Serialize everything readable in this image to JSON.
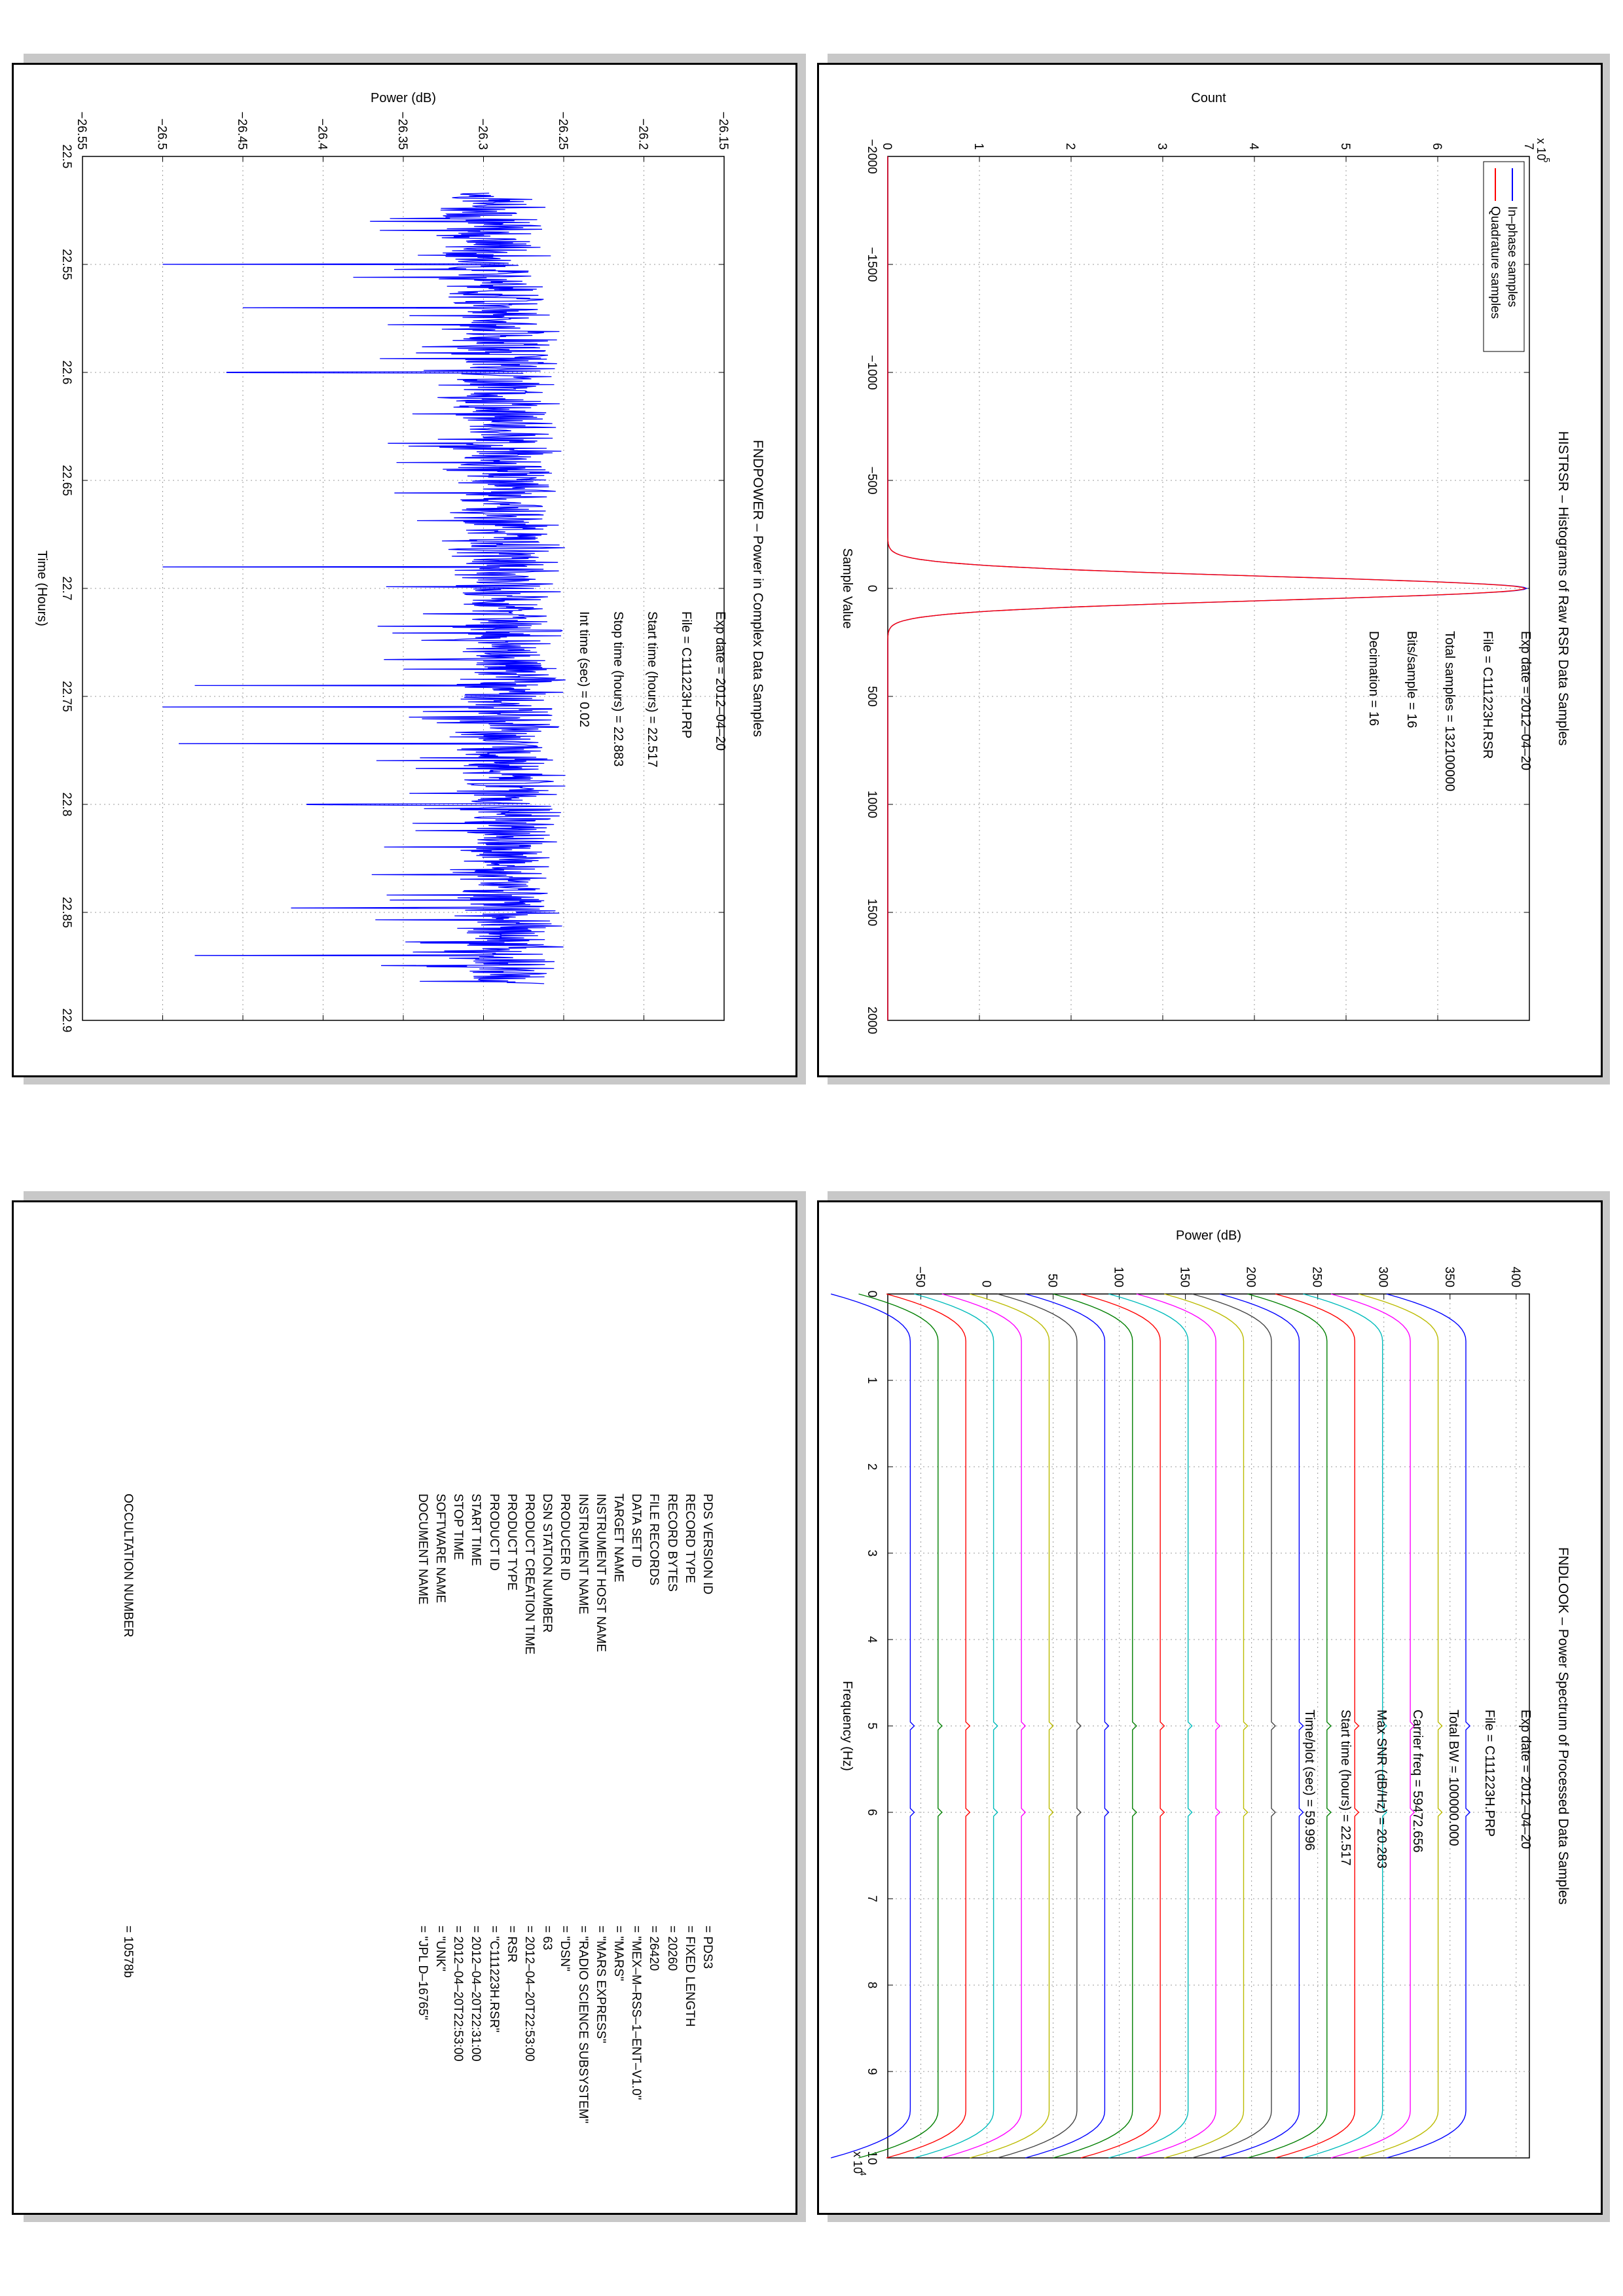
{
  "panels": {
    "histrsr": {
      "title": "HISTRSR – Histograms of Raw RSR Data Samples",
      "annotations": {
        "exp_date": "Exp date = 2012–04–20",
        "file": "File = C111223H.RSR",
        "total_samples": "Total samples =  132100000",
        "bits_sample": "Bits/sample    =         16",
        "decimation": "Decimation     =         16"
      }
    },
    "fndpower": {
      "title": "FNDPOWER – Power in Complex Data Samples",
      "annotations": {
        "exp_date": "Exp date = 2012–04–20",
        "file": "File = C111223H.PRP",
        "start_time": "Start time (hours) = 22.517",
        "stop_time": "Stop time (hours) = 22.883",
        "int_time": "Int time (sec) = 0.02"
      }
    },
    "fndlook": {
      "title": "FNDLOOK – Power Spectrum of Processed Data Samples",
      "annotations": {
        "exp_date": "Exp date = 2012–04–20",
        "file": "File = C111223H.PRP",
        "total_bw": "Total BW =    100000.000",
        "carrier_freq": "Carrier freq =   59472.656",
        "max_snr": "Max SNR (dB/Hz) =    20.283",
        "start_time": "Start time (hours) =   22.517",
        "time_plot": "Time/plot (sec) =   59.996"
      }
    },
    "labels_panel": {
      "rows": [
        {
          "key": "PDS VERSION ID",
          "value": "=  PDS3"
        },
        {
          "key": "RECORD TYPE",
          "value": "=  FIXED LENGTH"
        },
        {
          "key": "RECORD BYTES",
          "value": "=  20260"
        },
        {
          "key": "FILE RECORDS",
          "value": "=  26420"
        },
        {
          "key": "DATA SET ID",
          "value": "=  \"MEX–M–RSS–1–ENT–V1.0\""
        },
        {
          "key": "TARGET NAME",
          "value": "=  \"MARS\""
        },
        {
          "key": "INSTRUMENT HOST NAME",
          "value": "=  \"MARS EXPRESS\""
        },
        {
          "key": "INSTRUMENT NAME",
          "value": "=  \"RADIO SCIENCE SUBSYSTEM\""
        },
        {
          "key": "PRODUCER ID",
          "value": "=  \"DSN\""
        },
        {
          "key": "DSN STATION NUMBER",
          "value": "=  63"
        },
        {
          "key": "PRODUCT CREATION TIME",
          "value": "=  2012–04–20T22:53:00"
        },
        {
          "key": "PRODUCT TYPE",
          "value": "=  RSR"
        },
        {
          "key": "PRODUCT ID",
          "value": "=  \"C111223H.RSR\""
        },
        {
          "key": "START TIME",
          "value": "=  2012–04–20T22:31:00"
        },
        {
          "key": "STOP TIME",
          "value": "=  2012–04–20T22:53:00"
        },
        {
          "key": "SOFTWARE NAME",
          "value": "=  \"UNK\""
        },
        {
          "key": "DOCUMENT NAME",
          "value": "=  \"JPL D–16765\""
        },
        {
          "key": "OCCULTATION NUMBER",
          "value": "=  10578b"
        }
      ]
    }
  },
  "chart_data": [
    {
      "id": "histrsr",
      "type": "line",
      "title": "HISTRSR – Histograms of Raw RSR Data Samples",
      "xlabel": "Sample Value",
      "ylabel": "Count",
      "y_multiplier": "x 10^5",
      "y_exp_base": "x 10",
      "y_exp": "5",
      "xlim": [
        -2000,
        2000
      ],
      "ylim": [
        0,
        7
      ],
      "xticks": [
        "−2000",
        "−1500",
        "−1000",
        "−500",
        "0",
        "500",
        "1000",
        "1500",
        "2000"
      ],
      "yticks": [
        "0",
        "1",
        "2",
        "3",
        "4",
        "5",
        "6",
        "7"
      ],
      "grid": true,
      "legend_position": "top-left",
      "series": [
        {
          "name": "In–phase samples",
          "color": "#0000ff",
          "model": "gaussian",
          "peak": 6.97,
          "sigma": 55
        },
        {
          "name": "Quadrature samples",
          "color": "#ff0000",
          "model": "gaussian",
          "peak": 6.95,
          "sigma": 55
        }
      ]
    },
    {
      "id": "fndpower",
      "type": "line",
      "title": "FNDPOWER – Power in Complex Data Samples",
      "xlabel": "Time (Hours)",
      "ylabel": "Power (dB)",
      "xlim": [
        22.5,
        22.9
      ],
      "ylim": [
        -26.55,
        -26.15
      ],
      "xticks": [
        "22.5",
        "22.55",
        "22.6",
        "22.65",
        "22.7",
        "22.75",
        "22.8",
        "22.85",
        "22.9"
      ],
      "yticks": [
        "−26.55",
        "−26.5",
        "−26.45",
        "−26.4",
        "−26.35",
        "−26.3",
        "−26.25",
        "−26.2",
        "−26.15"
      ],
      "grid": true,
      "series": [
        {
          "color": "#0000ff",
          "x_range": [
            22.517,
            22.883
          ],
          "baseline": -26.285,
          "noise": 0.018,
          "spikes": [
            [
              22.55,
              -26.5
            ],
            [
              22.57,
              -26.45
            ],
            [
              22.6,
              -26.46
            ],
            [
              22.69,
              -26.5
            ],
            [
              22.745,
              -26.48
            ],
            [
              22.755,
              -26.5
            ],
            [
              22.772,
              -26.49
            ],
            [
              22.8,
              -26.41
            ],
            [
              22.848,
              -26.42
            ],
            [
              22.87,
              -26.48
            ]
          ]
        }
      ]
    },
    {
      "id": "fndlook",
      "type": "line",
      "title": "FNDLOOK – Power Spectrum of Processed Data Samples",
      "xlabel": "Frequency (Hz)",
      "ylabel": "Power (dB)",
      "x_multiplier": "x 10^4",
      "x_exp_base": "x 10",
      "x_exp": "4",
      "xlim": [
        0,
        10
      ],
      "ylim": [
        -75,
        410
      ],
      "xticks": [
        "0",
        "1",
        "2",
        "3",
        "4",
        "5",
        "6",
        "7",
        "8",
        "9",
        "10"
      ],
      "yticks": [
        "−50",
        "0",
        "50",
        "100",
        "150",
        "200",
        "250",
        "300",
        "350",
        "400"
      ],
      "grid": true,
      "series": [
        {
          "color": "#0000ff",
          "level": 362
        },
        {
          "color": "#bbbb00",
          "level": 341
        },
        {
          "color": "#ff00ff",
          "level": 320
        },
        {
          "color": "#00bbbb",
          "level": 299
        },
        {
          "color": "#ff0000",
          "level": 278
        },
        {
          "color": "#007f00",
          "level": 257
        },
        {
          "color": "#0000ff",
          "level": 236
        },
        {
          "color": "#444444",
          "level": 215
        },
        {
          "color": "#bbbb00",
          "level": 194
        },
        {
          "color": "#ff00ff",
          "level": 173
        },
        {
          "color": "#00bbbb",
          "level": 152
        },
        {
          "color": "#ff0000",
          "level": 131
        },
        {
          "color": "#007f00",
          "level": 110
        },
        {
          "color": "#0000ff",
          "level": 89
        },
        {
          "color": "#444444",
          "level": 68
        },
        {
          "color": "#bbbb00",
          "level": 47
        },
        {
          "color": "#ff00ff",
          "level": 26
        },
        {
          "color": "#00bbbb",
          "level": 5
        },
        {
          "color": "#ff0000",
          "level": -16
        },
        {
          "color": "#007f00",
          "level": -37
        },
        {
          "color": "#0000ff",
          "level": -58
        }
      ]
    }
  ]
}
